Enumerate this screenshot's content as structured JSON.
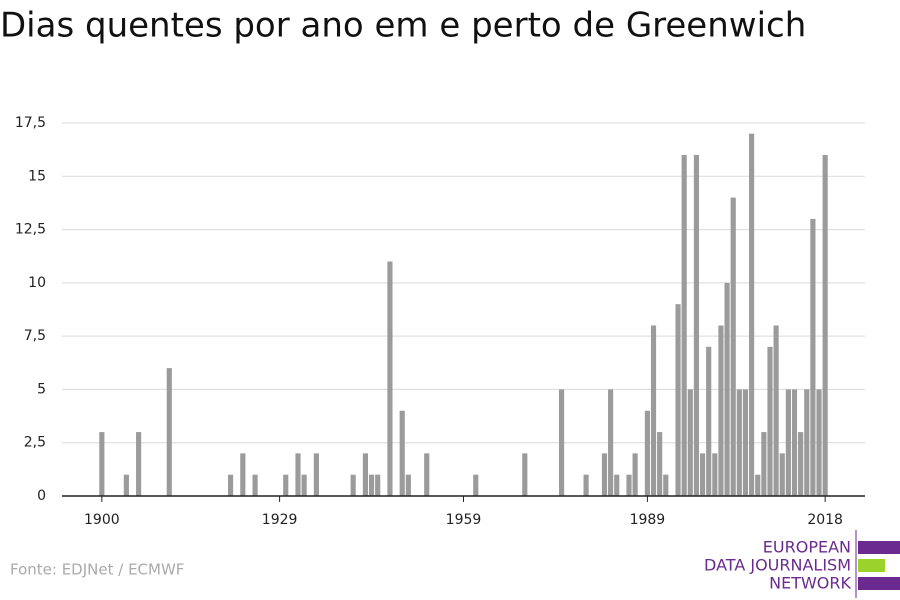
{
  "chart_data": {
    "type": "bar",
    "title": "Dias quentes por ano em e perto de Greenwich",
    "x": [
      1900,
      1904,
      1906,
      1911,
      1921,
      1923,
      1925,
      1930,
      1932,
      1933,
      1935,
      1941,
      1943,
      1944,
      1945,
      1947,
      1949,
      1950,
      1953,
      1961,
      1969,
      1975,
      1979,
      1982,
      1983,
      1984,
      1986,
      1987,
      1989,
      1990,
      1991,
      1992,
      1994,
      1995,
      1996,
      1997,
      1998,
      1999,
      2000,
      2001,
      2002,
      2003,
      2004,
      2005,
      2006,
      2007,
      2008,
      2009,
      2010,
      2011,
      2012,
      2013,
      2014,
      2015,
      2016,
      2017,
      2018
    ],
    "values": [
      3,
      1,
      3,
      6,
      1,
      2,
      1,
      1,
      2,
      1,
      2,
      1,
      2,
      1,
      1,
      11,
      4,
      1,
      2,
      1,
      2,
      5,
      1,
      2,
      5,
      1,
      1,
      2,
      4,
      8,
      3,
      1,
      9,
      16,
      5,
      16,
      2,
      7,
      2,
      8,
      10,
      14,
      5,
      5,
      17,
      1,
      3,
      7,
      8,
      2,
      5,
      5,
      3,
      5,
      13,
      5,
      16
    ],
    "color": "#9b9b9b",
    "xlim": [
      1893.5,
      2024.5
    ],
    "xticks": [
      1900,
      1929,
      1959,
      1989,
      2018
    ],
    "ylim": [
      0,
      17.5
    ],
    "yticks": [
      0,
      {
        "value": 2.5,
        "label": "2,5"
      },
      5,
      {
        "value": 7.5,
        "label": "7,5"
      },
      10,
      {
        "value": 12.5,
        "label": "12,5"
      },
      15,
      {
        "value": 17.5,
        "label": "17,5"
      }
    ],
    "grid": true,
    "source": "Fonte: EDJNet / ECMWF",
    "logo": [
      "EUROPEAN",
      "DATA JOURNALISM",
      "NETWORK"
    ]
  }
}
